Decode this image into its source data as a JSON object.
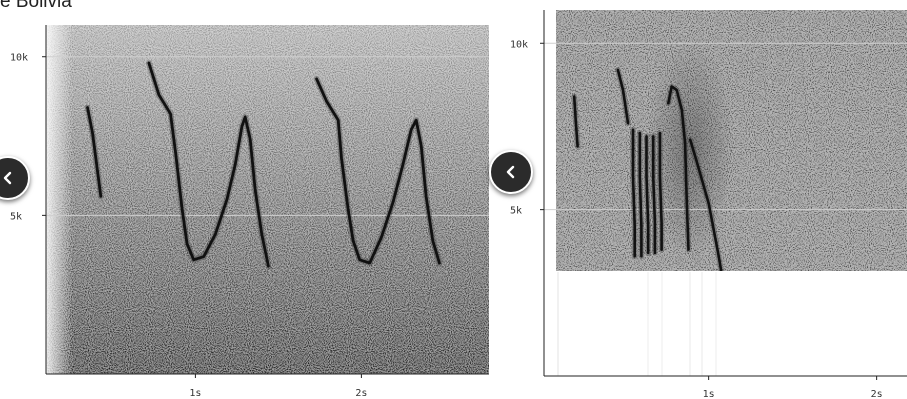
{
  "caption": "e Bolivia",
  "nav": {
    "left_icon": "chevron-left-icon",
    "right_icon": "chevron-left-icon"
  },
  "colors": {
    "ink": "#111111",
    "background": "#ffffff",
    "gridline": "#cfcfcf",
    "button": "#2b2b2b"
  },
  "chart_data": [
    {
      "type": "heatmap",
      "title": "",
      "xlabel": "",
      "ylabel": "",
      "x_unit": "s",
      "y_unit": "Hz",
      "xlim": [
        0.1,
        2.75
      ],
      "ylim": [
        0,
        11000
      ],
      "x_ticks": [
        {
          "value": 1,
          "label": "1s"
        },
        {
          "value": 2,
          "label": "2s"
        }
      ],
      "y_ticks": [
        {
          "value": 5000,
          "label": "5k"
        },
        {
          "value": 10000,
          "label": "10k"
        }
      ],
      "grid": true,
      "series": [
        {
          "points": [
            [
              0.35,
              8400
            ],
            [
              0.38,
              7600
            ],
            [
              0.41,
              6400
            ],
            [
              0.43,
              5600
            ]
          ]
        },
        {
          "points": [
            [
              0.72,
              9800
            ],
            [
              0.78,
              8800
            ],
            [
              0.85,
              8200
            ],
            [
              0.88,
              7000
            ],
            [
              0.92,
              5200
            ],
            [
              0.95,
              4100
            ],
            [
              0.99,
              3600
            ],
            [
              1.05,
              3700
            ],
            [
              1.12,
              4400
            ],
            [
              1.19,
              5500
            ],
            [
              1.24,
              6600
            ],
            [
              1.28,
              7800
            ],
            [
              1.3,
              8100
            ],
            [
              1.33,
              7400
            ],
            [
              1.36,
              5800
            ],
            [
              1.4,
              4400
            ],
            [
              1.44,
              3400
            ]
          ]
        },
        {
          "points": [
            [
              1.73,
              9300
            ],
            [
              1.79,
              8600
            ],
            [
              1.86,
              8000
            ],
            [
              1.88,
              6800
            ],
            [
              1.92,
              5200
            ],
            [
              1.95,
              4200
            ],
            [
              1.99,
              3600
            ],
            [
              2.05,
              3500
            ],
            [
              2.12,
              4300
            ],
            [
              2.19,
              5400
            ],
            [
              2.25,
              6600
            ],
            [
              2.3,
              7700
            ],
            [
              2.33,
              8000
            ],
            [
              2.36,
              7200
            ],
            [
              2.39,
              5600
            ],
            [
              2.43,
              4200
            ],
            [
              2.47,
              3500
            ]
          ]
        }
      ]
    },
    {
      "type": "heatmap",
      "title": "",
      "xlabel": "",
      "ylabel": "",
      "x_unit": "s",
      "y_unit": "Hz",
      "xlim": [
        0.02,
        2.16
      ],
      "ylim": [
        0,
        11000
      ],
      "x_ticks": [
        {
          "value": 1,
          "label": "1s"
        },
        {
          "value": 2,
          "label": "2s"
        }
      ],
      "y_ticks": [
        {
          "value": 5000,
          "label": "5k"
        },
        {
          "value": 10000,
          "label": "10k"
        }
      ],
      "grid": true,
      "series": [
        {
          "points": [
            [
              0.2,
              8400
            ],
            [
              0.21,
              7600
            ],
            [
              0.22,
              6900
            ]
          ]
        },
        {
          "points": [
            [
              0.46,
              9200
            ],
            [
              0.49,
              8600
            ],
            [
              0.52,
              7600
            ]
          ]
        },
        {
          "points": [
            [
              0.55,
              7400
            ],
            [
              0.55,
              6000
            ],
            [
              0.56,
              4500
            ],
            [
              0.56,
              3600
            ]
          ]
        },
        {
          "points": [
            [
              0.59,
              7300
            ],
            [
              0.59,
              6000
            ],
            [
              0.6,
              4500
            ],
            [
              0.6,
              3600
            ]
          ]
        },
        {
          "points": [
            [
              0.63,
              7200
            ],
            [
              0.63,
              6000
            ],
            [
              0.64,
              4500
            ],
            [
              0.64,
              3700
            ]
          ]
        },
        {
          "points": [
            [
              0.67,
              7200
            ],
            [
              0.67,
              6000
            ],
            [
              0.68,
              4600
            ],
            [
              0.68,
              3700
            ]
          ]
        },
        {
          "points": [
            [
              0.71,
              7300
            ],
            [
              0.71,
              6000
            ],
            [
              0.72,
              4600
            ],
            [
              0.72,
              3800
            ]
          ]
        },
        {
          "points": [
            [
              0.76,
              8200
            ],
            [
              0.78,
              8700
            ],
            [
              0.81,
              8600
            ],
            [
              0.84,
              8000
            ],
            [
              0.86,
              7000
            ],
            [
              0.87,
              5200
            ],
            [
              0.88,
              3800
            ]
          ]
        },
        {
          "points": [
            [
              0.89,
              7100
            ],
            [
              0.92,
              6600
            ],
            [
              0.96,
              5900
            ],
            [
              1.0,
              5200
            ],
            [
              1.03,
              4400
            ],
            [
              1.06,
              3600
            ],
            [
              1.08,
              3000
            ]
          ]
        }
      ]
    }
  ]
}
